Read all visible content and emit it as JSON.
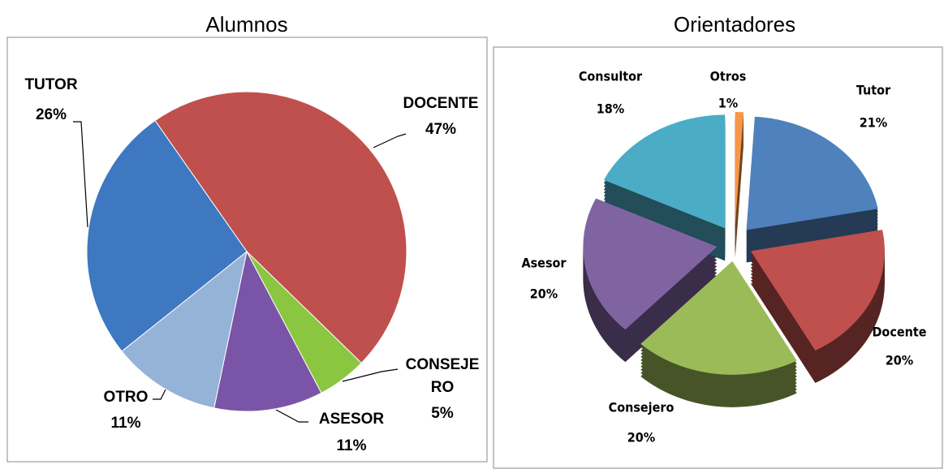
{
  "chart_data": [
    {
      "type": "pie",
      "title": "Alumnos",
      "categories": [
        "DOCENTE",
        "CONSEJERO",
        "ASESOR",
        "OTRO",
        "TUTOR"
      ],
      "values": [
        47,
        5,
        11,
        11,
        26
      ],
      "value_labels": [
        "47%",
        "5%",
        "11%",
        "11%",
        "26%"
      ],
      "colors": [
        "#c0504d",
        "#8ac640",
        "#7a54a6",
        "#95b3d7",
        "#3d78c0"
      ]
    },
    {
      "type": "pie3d",
      "title": "Orientadores",
      "categories": [
        "Tutor",
        "Docente",
        "Consejero",
        "Asesor",
        "Consultor",
        "Otros"
      ],
      "values": [
        21,
        20,
        20,
        20,
        18,
        1
      ],
      "value_labels": [
        "21%",
        "20%",
        "20%",
        "20%",
        "18%",
        "1%"
      ],
      "colors": [
        "#4f81bd",
        "#c0504d",
        "#9bbb59",
        "#8064a2",
        "#4bacc6",
        "#f79646"
      ]
    }
  ]
}
